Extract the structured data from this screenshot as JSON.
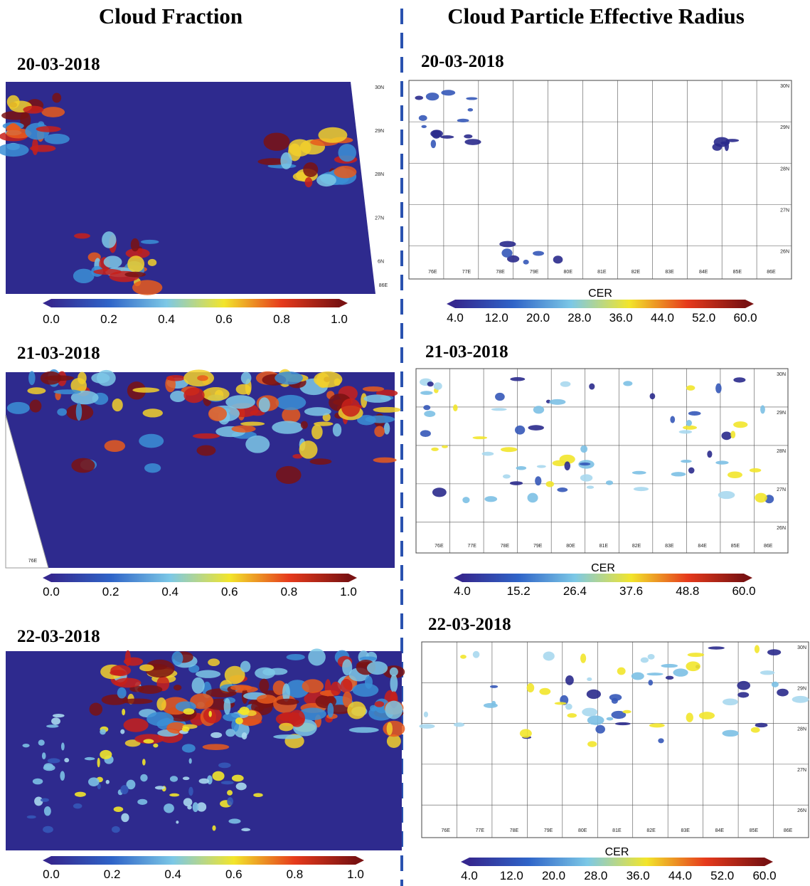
{
  "columns": [
    {
      "title": "Cloud Fraction",
      "panels": [
        {
          "date": "20-03-2018",
          "colorbar_ticks": [
            "0.0",
            "0.2",
            "0.4",
            "0.6",
            "0.8",
            "1.0"
          ],
          "lat_labels": [
            "30N",
            "29N",
            "28N",
            "27N",
            "6N"
          ],
          "lon_labels": [
            "86E"
          ]
        },
        {
          "date": "21-03-2018",
          "colorbar_ticks": [
            "0.0",
            "0.2",
            "0.4",
            "0.6",
            "0.8",
            "1.0"
          ],
          "lon_labels": [
            "76E"
          ]
        },
        {
          "date": "22-03-2018",
          "colorbar_ticks": [
            "0.0",
            "0.2",
            "0.4",
            "0.6",
            "0.8",
            "1.0"
          ]
        }
      ]
    },
    {
      "title": "Cloud Particle Effective Radius",
      "panels": [
        {
          "date": "20-03-2018",
          "colorbar_label": "CER",
          "colorbar_ticks": [
            "4.0",
            "12.0",
            "20.0",
            "28.0",
            "36.0",
            "44.0",
            "52.0",
            "60.0"
          ],
          "lat_labels": [
            "30N",
            "29N",
            "28N",
            "27N",
            "26N"
          ],
          "lon_labels": [
            "76E",
            "77E",
            "78E",
            "79E",
            "80E",
            "81E",
            "82E",
            "83E",
            "84E",
            "85E",
            "86E"
          ]
        },
        {
          "date": "21-03-2018",
          "colorbar_label": "CER",
          "colorbar_ticks": [
            "4.0",
            "15.2",
            "26.4",
            "37.6",
            "48.8",
            "60.0"
          ],
          "lat_labels": [
            "30N",
            "29N",
            "28N",
            "27N",
            "26N"
          ],
          "lon_labels": [
            "76E",
            "77E",
            "78E",
            "79E",
            "80E",
            "81E",
            "82E",
            "83E",
            "84E",
            "85E",
            "86E"
          ]
        },
        {
          "date": "22-03-2018",
          "colorbar_label": "CER",
          "colorbar_ticks": [
            "4.0",
            "12.0",
            "20.0",
            "28.0",
            "36.0",
            "44.0",
            "52.0",
            "60.0"
          ],
          "lat_labels": [
            "30N",
            "29N",
            "28N",
            "27N",
            "26N"
          ],
          "lon_labels": [
            "76E",
            "77E",
            "78E",
            "79E",
            "80E",
            "81E",
            "82E",
            "83E",
            "84E",
            "85E",
            "86E"
          ]
        }
      ]
    }
  ]
}
